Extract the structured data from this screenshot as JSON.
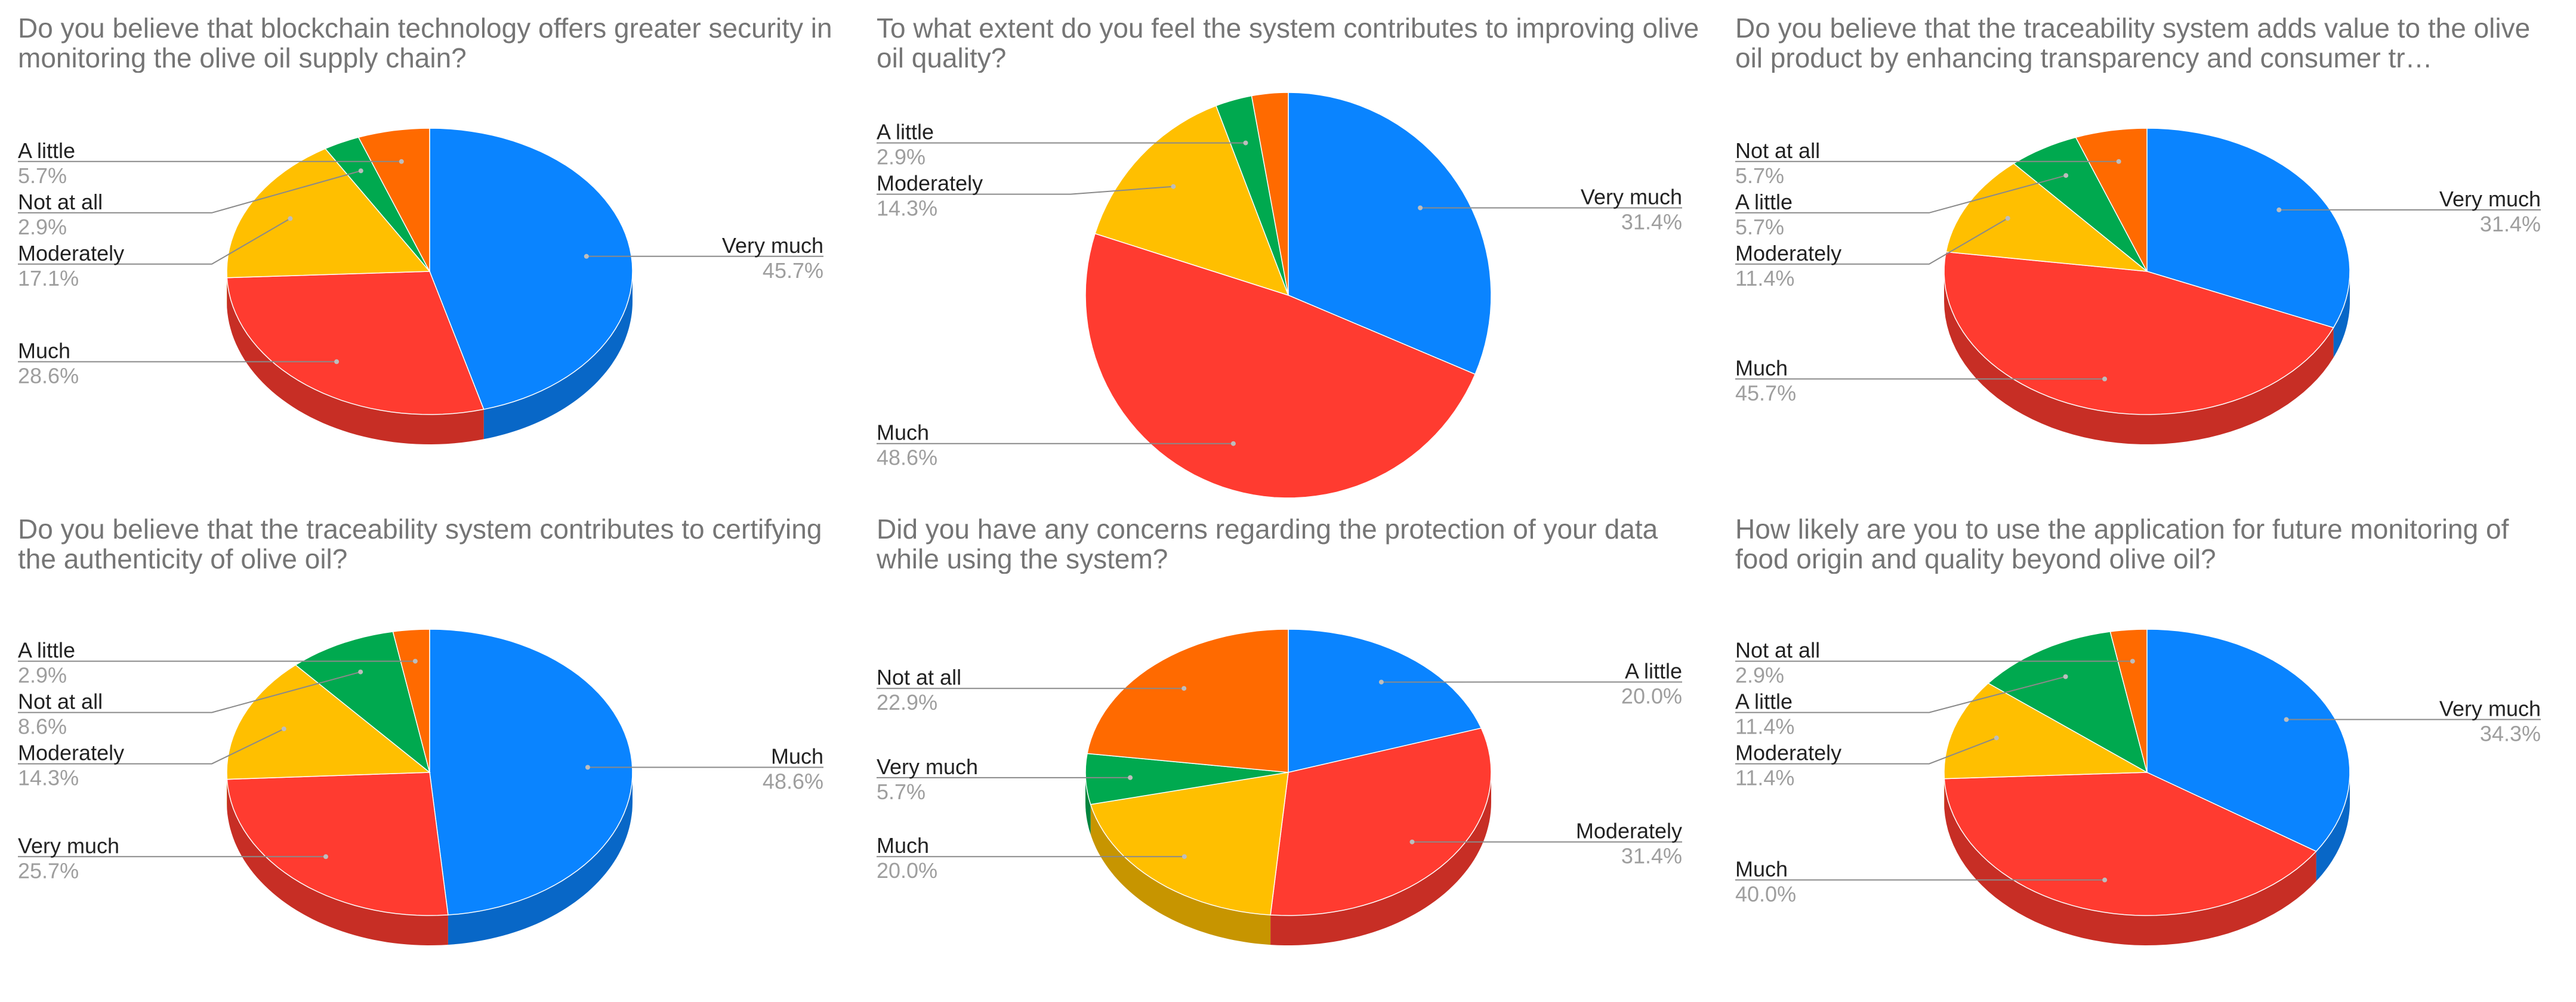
{
  "colors": {
    "blue": "#0a84ff",
    "red": "#ff3b30",
    "yellow": "#ffbf00",
    "green": "#00a94f",
    "orange": "#ff6a00",
    "leader": "#8a8a8a",
    "title": "#757575"
  },
  "chart_data": [
    {
      "type": "pie",
      "style": "3d",
      "title": "Do you believe that blockchain technology offers greater security in monitoring the olive oil supply chain?",
      "slices": [
        {
          "label": "Very much",
          "value": 45.7,
          "pct": "45.7%",
          "color": "#0a84ff",
          "side": "right"
        },
        {
          "label": "Much",
          "value": 28.6,
          "pct": "28.6%",
          "color": "#ff3b30",
          "side": "left"
        },
        {
          "label": "Moderately",
          "value": 17.1,
          "pct": "17.1%",
          "color": "#ffbf00",
          "side": "left"
        },
        {
          "label": "Not at all",
          "value": 2.9,
          "pct": "2.9%",
          "color": "#00a94f",
          "side": "left"
        },
        {
          "label": "A little",
          "value": 5.7,
          "pct": "5.7%",
          "color": "#ff6a00",
          "side": "left"
        }
      ]
    },
    {
      "type": "pie",
      "style": "flat",
      "title": "To what extent do you feel the system contributes to improving olive oil quality?",
      "slices": [
        {
          "label": "Very much",
          "value": 31.4,
          "pct": "31.4%",
          "color": "#0a84ff",
          "side": "right"
        },
        {
          "label": "Much",
          "value": 48.6,
          "pct": "48.6%",
          "color": "#ff3b30",
          "side": "left"
        },
        {
          "label": "Moderately",
          "value": 14.3,
          "pct": "14.3%",
          "color": "#ffbf00",
          "side": "left"
        },
        {
          "label": "A little",
          "value": 2.9,
          "pct": "2.9%",
          "color": "#00a94f",
          "side": "left"
        },
        {
          "label": "",
          "value": 2.9,
          "pct": "",
          "color": "#ff6a00",
          "side": "none"
        }
      ]
    },
    {
      "type": "pie",
      "style": "3d",
      "title": "Do you believe that the traceability system adds value to the olive oil product by enhancing transparency and consumer tr…",
      "slices": [
        {
          "label": "Very much",
          "value": 31.4,
          "pct": "31.4%",
          "color": "#0a84ff",
          "side": "right"
        },
        {
          "label": "Much",
          "value": 45.7,
          "pct": "45.7%",
          "color": "#ff3b30",
          "side": "left"
        },
        {
          "label": "Moderately",
          "value": 11.4,
          "pct": "11.4%",
          "color": "#ffbf00",
          "side": "left"
        },
        {
          "label": "A little",
          "value": 5.7,
          "pct": "5.7%",
          "color": "#00a94f",
          "side": "left"
        },
        {
          "label": "Not at all",
          "value": 5.7,
          "pct": "5.7%",
          "color": "#ff6a00",
          "side": "left"
        }
      ]
    },
    {
      "type": "pie",
      "style": "3d",
      "title": "Do you believe that the traceability system contributes to certifying the authenticity of olive oil?",
      "slices": [
        {
          "label": "Much",
          "value": 48.6,
          "pct": "48.6%",
          "color": "#0a84ff",
          "side": "right"
        },
        {
          "label": "Very much",
          "value": 25.7,
          "pct": "25.7%",
          "color": "#ff3b30",
          "side": "left"
        },
        {
          "label": "Moderately",
          "value": 14.3,
          "pct": "14.3%",
          "color": "#ffbf00",
          "side": "left"
        },
        {
          "label": "Not at all",
          "value": 8.6,
          "pct": "8.6%",
          "color": "#00a94f",
          "side": "left"
        },
        {
          "label": "A little",
          "value": 2.9,
          "pct": "2.9%",
          "color": "#ff6a00",
          "side": "left"
        }
      ]
    },
    {
      "type": "pie",
      "style": "3d",
      "title": "Did you have any concerns regarding the protection of your data while using the system?",
      "slices": [
        {
          "label": "A little",
          "value": 20.0,
          "pct": "20.0%",
          "color": "#0a84ff",
          "side": "right"
        },
        {
          "label": "Moderately",
          "value": 31.4,
          "pct": "31.4%",
          "color": "#ff3b30",
          "side": "right"
        },
        {
          "label": "Much",
          "value": 20.0,
          "pct": "20.0%",
          "color": "#ffbf00",
          "side": "left"
        },
        {
          "label": "Very much",
          "value": 5.7,
          "pct": "5.7%",
          "color": "#00a94f",
          "side": "left"
        },
        {
          "label": "Not at all",
          "value": 22.9,
          "pct": "22.9%",
          "color": "#ff6a00",
          "side": "left"
        }
      ]
    },
    {
      "type": "pie",
      "style": "3d",
      "title": "How likely are you to use the application for future monitoring of food origin and quality beyond olive oil?",
      "slices": [
        {
          "label": "Very much",
          "value": 34.3,
          "pct": "34.3%",
          "color": "#0a84ff",
          "side": "right"
        },
        {
          "label": "Much",
          "value": 40.0,
          "pct": "40.0%",
          "color": "#ff3b30",
          "side": "left"
        },
        {
          "label": "Moderately",
          "value": 11.4,
          "pct": "11.4%",
          "color": "#ffbf00",
          "side": "left"
        },
        {
          "label": "A little",
          "value": 11.4,
          "pct": "11.4%",
          "color": "#00a94f",
          "side": "left"
        },
        {
          "label": "Not at all",
          "value": 2.9,
          "pct": "2.9%",
          "color": "#ff6a00",
          "side": "left"
        }
      ]
    }
  ]
}
